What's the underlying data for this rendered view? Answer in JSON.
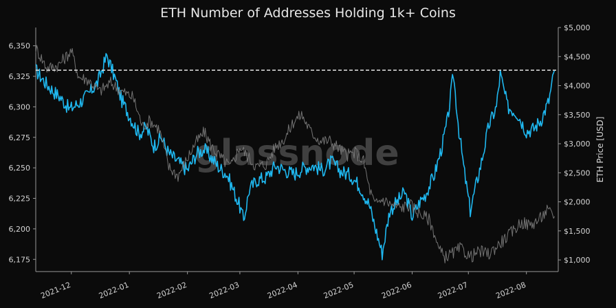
{
  "chart_data": {
    "type": "line",
    "title": "ETH Number of Addresses Holding 1k+ Coins",
    "watermark": "glassnode",
    "ylabel_left": "",
    "ylabel_right": "ETH Price [USD]",
    "ylim_left": [
      6165,
      6365
    ],
    "ylim_right": [
      800,
      5000
    ],
    "xlim": [
      "2021-11-12",
      "2022-08-18"
    ],
    "x_ticks": [
      "2021-12",
      "2022-01",
      "2022-02",
      "2022-03",
      "2022-04",
      "2022-05",
      "2022-06",
      "2022-07",
      "2022-08"
    ],
    "x_tick_dates": [
      "2021-12-01",
      "2022-01-01",
      "2022-02-01",
      "2022-03-01",
      "2022-04-01",
      "2022-05-01",
      "2022-06-01",
      "2022-07-01",
      "2022-08-01"
    ],
    "y_ticks_left": [
      "6,175",
      "6,200",
      "6,225",
      "6,250",
      "6,275",
      "6,300",
      "6,325",
      "6,350"
    ],
    "y_tick_values_left": [
      6175,
      6200,
      6225,
      6250,
      6275,
      6300,
      6325,
      6350
    ],
    "y_ticks_right": [
      "$1,000",
      "$1,500",
      "$2,000",
      "$2,500",
      "$3,000",
      "$3,500",
      "$4,000",
      "$4,500",
      "$5,000"
    ],
    "y_tick_values_right": [
      1000,
      1500,
      2000,
      2500,
      3000,
      3500,
      4000,
      4500,
      5000
    ],
    "reference_line": {
      "axis": "left",
      "value": 6330,
      "style": "dashed",
      "color": "#e6e6e6"
    },
    "series": [
      {
        "axis": "left",
        "color": "#1fb8f0",
        "x": [
          "2021-11-12",
          "2021-11-17",
          "2021-11-22",
          "2021-11-25",
          "2021-11-30",
          "2021-12-05",
          "2021-12-10",
          "2021-12-15",
          "2021-12-20",
          "2021-12-24",
          "2021-12-28",
          "2022-01-02",
          "2022-01-06",
          "2022-01-10",
          "2022-01-14",
          "2022-01-18",
          "2022-01-22",
          "2022-01-27",
          "2022-02-01",
          "2022-02-06",
          "2022-02-10",
          "2022-02-14",
          "2022-02-18",
          "2022-02-22",
          "2022-02-26",
          "2022-03-01",
          "2022-03-03",
          "2022-03-06",
          "2022-03-10",
          "2022-03-15",
          "2022-03-20",
          "2022-03-25",
          "2022-03-30",
          "2022-04-04",
          "2022-04-09",
          "2022-04-14",
          "2022-04-19",
          "2022-04-24",
          "2022-04-29",
          "2022-05-04",
          "2022-05-09",
          "2022-05-13",
          "2022-05-16",
          "2022-05-20",
          "2022-05-24",
          "2022-05-28",
          "2022-06-01",
          "2022-06-05",
          "2022-06-08",
          "2022-06-13",
          "2022-06-17",
          "2022-06-20",
          "2022-06-23",
          "2022-06-26",
          "2022-06-29",
          "2022-07-02",
          "2022-07-05",
          "2022-07-08",
          "2022-07-12",
          "2022-07-16",
          "2022-07-18",
          "2022-07-22",
          "2022-07-27",
          "2022-08-01",
          "2022-08-05",
          "2022-08-09",
          "2022-08-13",
          "2022-08-16"
        ],
        "values": [
          6330,
          6320,
          6312,
          6308,
          6298,
          6303,
          6310,
          6320,
          6342,
          6325,
          6305,
          6290,
          6278,
          6283,
          6268,
          6275,
          6262,
          6255,
          6248,
          6262,
          6265,
          6258,
          6250,
          6245,
          6230,
          6218,
          6207,
          6232,
          6240,
          6242,
          6252,
          6248,
          6245,
          6250,
          6252,
          6248,
          6255,
          6247,
          6244,
          6235,
          6220,
          6197,
          6180,
          6215,
          6222,
          6230,
          6210,
          6222,
          6228,
          6245,
          6268,
          6290,
          6327,
          6280,
          6245,
          6215,
          6235,
          6255,
          6285,
          6300,
          6327,
          6300,
          6295,
          6280,
          6282,
          6290,
          6305,
          6330
        ]
      },
      {
        "axis": "right",
        "color": "#7a7a7a",
        "x": [
          "2021-11-12",
          "2021-11-18",
          "2021-11-24",
          "2021-12-01",
          "2021-12-05",
          "2021-12-10",
          "2021-12-16",
          "2021-12-22",
          "2021-12-28",
          "2022-01-03",
          "2022-01-08",
          "2022-01-12",
          "2022-01-17",
          "2022-01-22",
          "2022-01-27",
          "2022-02-01",
          "2022-02-05",
          "2022-02-10",
          "2022-02-14",
          "2022-02-19",
          "2022-02-24",
          "2022-03-01",
          "2022-03-06",
          "2022-03-10",
          "2022-03-15",
          "2022-03-20",
          "2022-03-25",
          "2022-03-30",
          "2022-04-03",
          "2022-04-08",
          "2022-04-13",
          "2022-04-18",
          "2022-04-22",
          "2022-04-27",
          "2022-05-02",
          "2022-05-06",
          "2022-05-09",
          "2022-05-12",
          "2022-05-16",
          "2022-05-21",
          "2022-05-26",
          "2022-05-31",
          "2022-06-05",
          "2022-06-10",
          "2022-06-13",
          "2022-06-15",
          "2022-06-18",
          "2022-06-22",
          "2022-06-27",
          "2022-07-02",
          "2022-07-07",
          "2022-07-12",
          "2022-07-15",
          "2022-07-20",
          "2022-07-25",
          "2022-07-29",
          "2022-08-03",
          "2022-08-08",
          "2022-08-12",
          "2022-08-16"
        ],
        "values": [
          4650,
          4300,
          4350,
          4600,
          4150,
          4100,
          3900,
          4050,
          3900,
          3800,
          3300,
          3400,
          3250,
          2600,
          2450,
          2750,
          3000,
          3200,
          2950,
          2750,
          2600,
          2950,
          2750,
          2600,
          2650,
          2950,
          3100,
          3400,
          3500,
          3200,
          3050,
          3050,
          2950,
          2800,
          2850,
          2700,
          2250,
          1950,
          2050,
          1950,
          1900,
          1950,
          1800,
          1700,
          1450,
          1200,
          1050,
          1100,
          1200,
          1050,
          1150,
          1100,
          1200,
          1350,
          1500,
          1650,
          1600,
          1700,
          1850,
          1750
        ]
      }
    ]
  }
}
